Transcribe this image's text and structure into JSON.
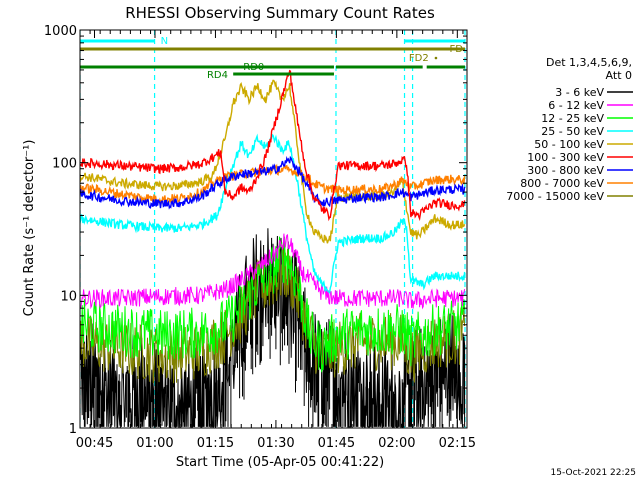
{
  "chart_data": {
    "type": "line",
    "title": "RHESSI Observing Summary Count Rates",
    "xlabel": "Start Time (05-Apr-05 00:41:22)",
    "ylabel": "Count Rate (s⁻¹ detector⁻¹)",
    "yscale": "log",
    "ylim": [
      1,
      1000
    ],
    "y_ticks": [
      {
        "value": 1,
        "label": "1"
      },
      {
        "value": 10,
        "label": "10"
      },
      {
        "value": 100,
        "label": "100"
      },
      {
        "value": 1000,
        "label": "1000"
      }
    ],
    "x_range_min": [
      0,
      96
    ],
    "x_ticks": [
      {
        "min": 3.6,
        "label": "00:45"
      },
      {
        "min": 18.6,
        "label": "01:00"
      },
      {
        "min": 33.6,
        "label": "01:15"
      },
      {
        "min": 48.6,
        "label": "01:30"
      },
      {
        "min": 63.6,
        "label": "01:45"
      },
      {
        "min": 78.6,
        "label": "02:00"
      },
      {
        "min": 93.6,
        "label": "02:15"
      }
    ],
    "legend_placement": "right",
    "legend_header": [
      "Det 1,3,4,5,6,9,",
      "Att 0"
    ],
    "series": [
      {
        "name": "3 - 6 keV",
        "color": "#000000",
        "points": [
          [
            0,
            2.5
          ],
          [
            5,
            2.2
          ],
          [
            10,
            1.8
          ],
          [
            15,
            2.0
          ],
          [
            20,
            1.7
          ],
          [
            25,
            1.5
          ],
          [
            30,
            1.5
          ],
          [
            35,
            2.5
          ],
          [
            38,
            4
          ],
          [
            40,
            6
          ],
          [
            42,
            9
          ],
          [
            44,
            12
          ],
          [
            46,
            14
          ],
          [
            48,
            13
          ],
          [
            50,
            12
          ],
          [
            52,
            10
          ],
          [
            54,
            7
          ],
          [
            56,
            4
          ],
          [
            58,
            3
          ],
          [
            60,
            2.5
          ],
          [
            64,
            2.5
          ],
          [
            68,
            2.2
          ],
          [
            72,
            1.8
          ],
          [
            76,
            1.6
          ],
          [
            80,
            1.6
          ],
          [
            84,
            2.2
          ],
          [
            88,
            2.6
          ],
          [
            92,
            3
          ],
          [
            95.5,
            3
          ]
        ]
      },
      {
        "name": "6 - 12 keV",
        "color": "#ff00ff",
        "points": [
          [
            0,
            9.5
          ],
          [
            10,
            9.5
          ],
          [
            20,
            9.8
          ],
          [
            30,
            10
          ],
          [
            36,
            11
          ],
          [
            40,
            13
          ],
          [
            44,
            16
          ],
          [
            48,
            20
          ],
          [
            51,
            26
          ],
          [
            53,
            22
          ],
          [
            55,
            15
          ],
          [
            58,
            12
          ],
          [
            61,
            10
          ],
          [
            64,
            9.5
          ],
          [
            70,
            9.5
          ],
          [
            80,
            9.5
          ],
          [
            82,
            9
          ],
          [
            88,
            9.5
          ],
          [
            95.5,
            9.5
          ]
        ]
      },
      {
        "name": "12 - 25 keV",
        "color": "#00ff00",
        "points": [
          [
            0,
            6
          ],
          [
            10,
            5.5
          ],
          [
            20,
            5
          ],
          [
            30,
            5.2
          ],
          [
            36,
            6
          ],
          [
            40,
            8
          ],
          [
            44,
            12
          ],
          [
            48,
            16
          ],
          [
            51,
            20
          ],
          [
            53,
            15
          ],
          [
            55,
            9
          ],
          [
            57,
            5
          ],
          [
            60,
            4
          ],
          [
            64,
            5
          ],
          [
            70,
            5.5
          ],
          [
            80,
            5.5
          ],
          [
            82,
            4.5
          ],
          [
            88,
            5.5
          ],
          [
            95.5,
            6
          ]
        ]
      },
      {
        "name": "25 - 50 keV",
        "color": "#00ffff",
        "points": [
          [
            0,
            38
          ],
          [
            5,
            36
          ],
          [
            10,
            34
          ],
          [
            15,
            33
          ],
          [
            20,
            32
          ],
          [
            25,
            32
          ],
          [
            30,
            34
          ],
          [
            34,
            40
          ],
          [
            37,
            80
          ],
          [
            40,
            140
          ],
          [
            42,
            110
          ],
          [
            44,
            150
          ],
          [
            46,
            130
          ],
          [
            48,
            160
          ],
          [
            50,
            125
          ],
          [
            52,
            140
          ],
          [
            54,
            70
          ],
          [
            56,
            30
          ],
          [
            58,
            15
          ],
          [
            60,
            12
          ],
          [
            62,
            11
          ],
          [
            64,
            25
          ],
          [
            70,
            27
          ],
          [
            75,
            27
          ],
          [
            78,
            30
          ],
          [
            80,
            36
          ],
          [
            81,
            34
          ],
          [
            82,
            13
          ],
          [
            85,
            12
          ],
          [
            88,
            14
          ],
          [
            92,
            14
          ],
          [
            95.5,
            14
          ]
        ]
      },
      {
        "name": "50 - 100 keV",
        "color": "#ccaa00",
        "points": [
          [
            0,
            80
          ],
          [
            5,
            75
          ],
          [
            10,
            70
          ],
          [
            15,
            68
          ],
          [
            20,
            66
          ],
          [
            25,
            67
          ],
          [
            30,
            72
          ],
          [
            33,
            80
          ],
          [
            36,
            150
          ],
          [
            38,
            280
          ],
          [
            40,
            370
          ],
          [
            42,
            300
          ],
          [
            44,
            380
          ],
          [
            46,
            300
          ],
          [
            48,
            400
          ],
          [
            50,
            300
          ],
          [
            52,
            380
          ],
          [
            54,
            130
          ],
          [
            56,
            45
          ],
          [
            58,
            30
          ],
          [
            60,
            27
          ],
          [
            62,
            26
          ],
          [
            64,
            55
          ],
          [
            70,
            56
          ],
          [
            75,
            56
          ],
          [
            78,
            60
          ],
          [
            80,
            72
          ],
          [
            82,
            30
          ],
          [
            84,
            28
          ],
          [
            88,
            38
          ],
          [
            92,
            34
          ],
          [
            95.5,
            34
          ]
        ]
      },
      {
        "name": "100 - 300 keV",
        "color": "#ff0000",
        "points": [
          [
            0,
            100
          ],
          [
            5,
            98
          ],
          [
            10,
            95
          ],
          [
            15,
            92
          ],
          [
            20,
            90
          ],
          [
            25,
            92
          ],
          [
            30,
            98
          ],
          [
            33,
            110
          ],
          [
            35,
            120
          ],
          [
            36,
            60
          ],
          [
            38,
            55
          ],
          [
            40,
            65
          ],
          [
            42,
            60
          ],
          [
            44,
            80
          ],
          [
            46,
            110
          ],
          [
            48,
            180
          ],
          [
            50,
            300
          ],
          [
            52,
            500
          ],
          [
            54,
            200
          ],
          [
            56,
            90
          ],
          [
            58,
            55
          ],
          [
            60,
            45
          ],
          [
            62,
            40
          ],
          [
            64,
            95
          ],
          [
            70,
            95
          ],
          [
            75,
            95
          ],
          [
            78,
            98
          ],
          [
            80,
            105
          ],
          [
            81,
            100
          ],
          [
            82,
            42
          ],
          [
            84,
            40
          ],
          [
            88,
            50
          ],
          [
            92,
            48
          ],
          [
            95.5,
            48
          ]
        ]
      },
      {
        "name": "300 - 800 keV",
        "color": "#0000ff",
        "points": [
          [
            0,
            58
          ],
          [
            5,
            55
          ],
          [
            10,
            52
          ],
          [
            15,
            50
          ],
          [
            20,
            49
          ],
          [
            25,
            50
          ],
          [
            30,
            55
          ],
          [
            33,
            65
          ],
          [
            36,
            75
          ],
          [
            40,
            82
          ],
          [
            44,
            84
          ],
          [
            48,
            88
          ],
          [
            50,
            95
          ],
          [
            52,
            105
          ],
          [
            54,
            90
          ],
          [
            56,
            70
          ],
          [
            58,
            55
          ],
          [
            60,
            50
          ],
          [
            64,
            52
          ],
          [
            70,
            55
          ],
          [
            75,
            55
          ],
          [
            78,
            58
          ],
          [
            80,
            60
          ],
          [
            82,
            55
          ],
          [
            88,
            62
          ],
          [
            92,
            63
          ],
          [
            95.5,
            62
          ]
        ]
      },
      {
        "name": "800 - 7000 keV",
        "color": "#ff8000",
        "points": [
          [
            0,
            65
          ],
          [
            5,
            62
          ],
          [
            10,
            58
          ],
          [
            15,
            55
          ],
          [
            20,
            53
          ],
          [
            25,
            54
          ],
          [
            30,
            60
          ],
          [
            33,
            70
          ],
          [
            36,
            78
          ],
          [
            40,
            82
          ],
          [
            44,
            85
          ],
          [
            48,
            88
          ],
          [
            52,
            88
          ],
          [
            54,
            85
          ],
          [
            56,
            78
          ],
          [
            58,
            70
          ],
          [
            60,
            65
          ],
          [
            64,
            62
          ],
          [
            70,
            63
          ],
          [
            75,
            63
          ],
          [
            78,
            68
          ],
          [
            80,
            74
          ],
          [
            82,
            65
          ],
          [
            88,
            74
          ],
          [
            92,
            75
          ],
          [
            95.5,
            74
          ]
        ]
      },
      {
        "name": "7000 - 15000 keV",
        "color": "#808000",
        "points": [
          [
            0,
            4.5
          ],
          [
            10,
            4
          ],
          [
            20,
            3.5
          ],
          [
            30,
            3.8
          ],
          [
            36,
            5
          ],
          [
            40,
            7
          ],
          [
            44,
            11
          ],
          [
            48,
            13
          ],
          [
            51,
            15
          ],
          [
            53,
            12
          ],
          [
            55,
            8
          ],
          [
            57,
            5
          ],
          [
            60,
            3.5
          ],
          [
            64,
            4
          ],
          [
            70,
            4.5
          ],
          [
            80,
            4.5
          ],
          [
            82,
            3.5
          ],
          [
            88,
            4.5
          ],
          [
            95.5,
            5
          ]
        ]
      }
    ],
    "flags": {
      "color_n": "#00ffff",
      "color_fd": "#808000",
      "color_rd": "#008000",
      "n_label": "N",
      "fd_label": "FD",
      "fd2_label": "FD2",
      "rd0_label": "RD0",
      "rd4_label": "RD4",
      "n_segments": [
        [
          0,
          18.5
        ],
        [
          80.5,
          95.5
        ]
      ],
      "fd_segments": [
        [
          0,
          95.5
        ]
      ],
      "rd0_segments": [
        [
          0,
          63
        ],
        [
          63.5,
          85
        ],
        [
          86,
          95.5
        ]
      ],
      "rd4_segments": [
        [
          38,
          63
        ]
      ]
    },
    "vlines_min": [
      0,
      18.5,
      63.5,
      80.5,
      82.5,
      95.5
    ],
    "vline_color": "#00ffff"
  },
  "footer_date": "15-Oct-2021 22:25"
}
